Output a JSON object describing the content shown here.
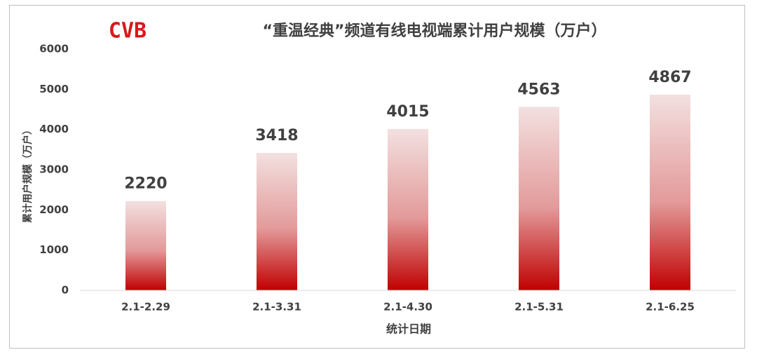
{
  "chart_data": {
    "type": "bar",
    "logo": "CVB",
    "title": "“重温经典”频道有线电视端累计用户规模（万户）",
    "y_label": "累计用户规模（万户）",
    "x_label": "统计日期",
    "categories": [
      "2.1-2.29",
      "2.1-3.31",
      "2.1-4.30",
      "2.1-5.31",
      "2.1-6.25"
    ],
    "values": [
      2220,
      3418,
      4015,
      4563,
      4867
    ],
    "color": "#c00000",
    "ylim": [
      0,
      6000
    ],
    "yticks": [
      0,
      1000,
      2000,
      3000,
      4000,
      5000,
      6000
    ],
    "grid": false
  }
}
